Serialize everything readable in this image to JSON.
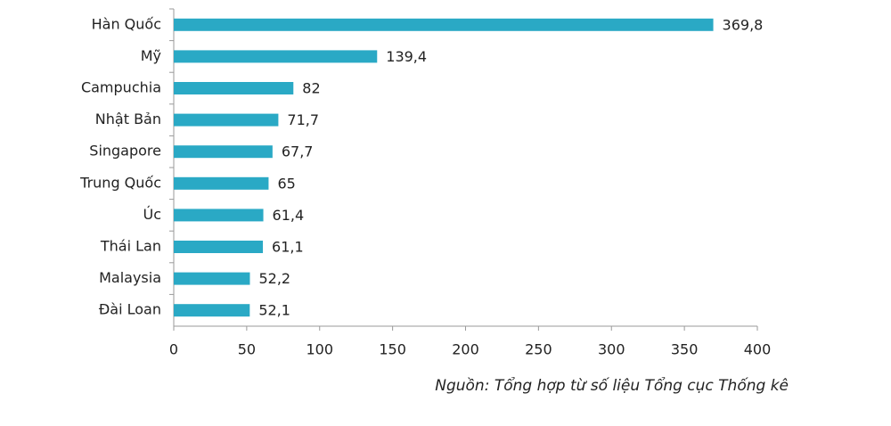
{
  "chart_data": {
    "type": "bar",
    "orientation": "horizontal",
    "categories": [
      "Hàn Quốc",
      "Mỹ",
      "Campuchia",
      "Nhật Bản",
      "Singapore",
      "Trung Quốc",
      "Úc",
      "Thái Lan",
      "Malaysia",
      "Đài Loan"
    ],
    "values": [
      369.8,
      139.4,
      82,
      71.7,
      67.7,
      65,
      61.4,
      61.1,
      52.2,
      52.1
    ],
    "value_labels": [
      "369,8",
      "139,4",
      "82",
      "71,7",
      "67,7",
      "65",
      "61,4",
      "61,1",
      "52,2",
      "52,1"
    ],
    "color": "#2aa9c5",
    "xlim": [
      0,
      400
    ],
    "xticks": [
      0,
      50,
      100,
      150,
      200,
      250,
      300,
      350,
      400
    ],
    "grid": false,
    "source": "Nguồn: Tổng hợp từ số liệu Tổng cục Thống kê"
  }
}
